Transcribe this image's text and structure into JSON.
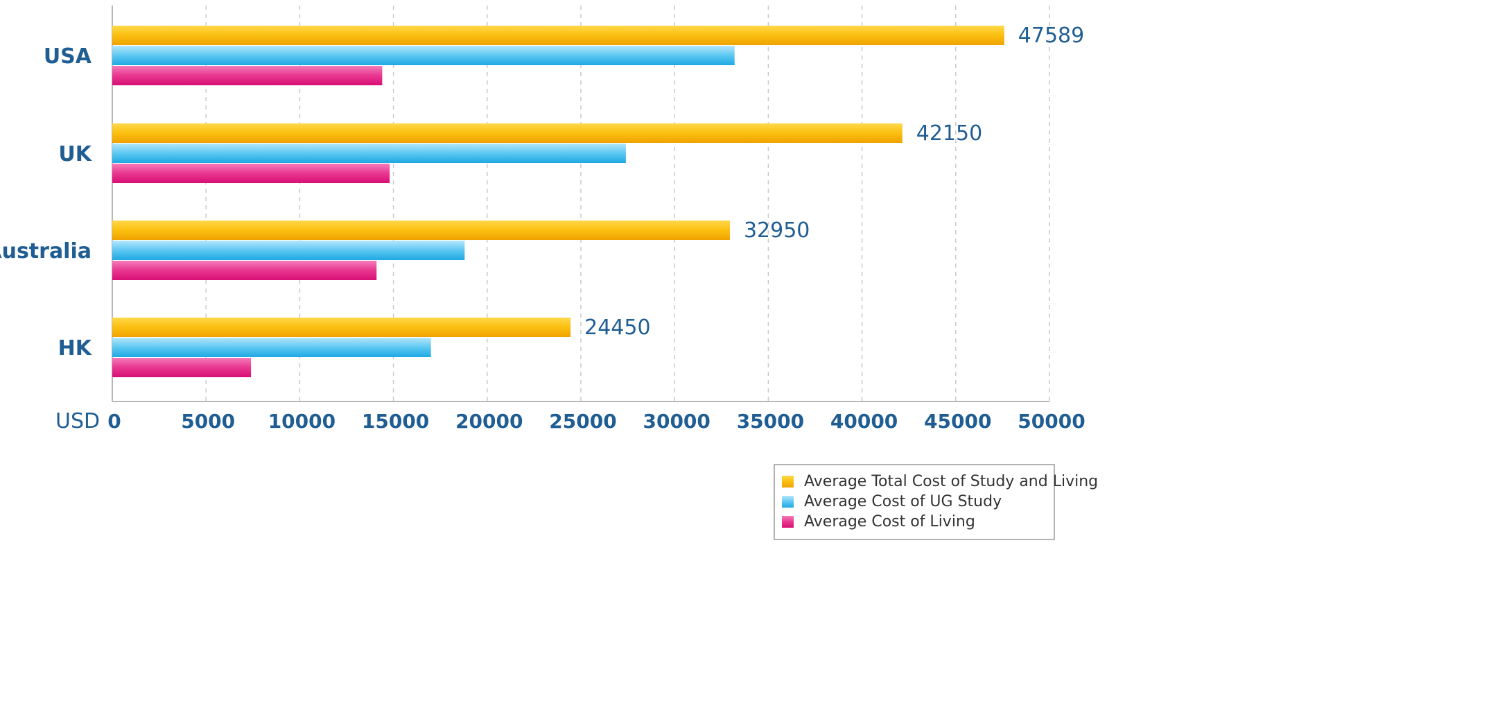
{
  "chart_data": {
    "type": "bar",
    "orientation": "horizontal",
    "title": "",
    "xlabel": "USD",
    "ylabel": "",
    "xlim": [
      0,
      50000
    ],
    "x_ticks": [
      "0",
      "5000",
      "10000",
      "15000",
      "20000",
      "25000",
      "30000",
      "35000",
      "40000",
      "45000",
      "50000"
    ],
    "grid": "vertical dashed",
    "legend_position": "bottom-right",
    "categories": [
      "USA",
      "UK",
      "Australia",
      "HK"
    ],
    "series": [
      {
        "name": "Average Total Cost of Study and Living",
        "color": "#f5b800",
        "values": [
          47589,
          42150,
          32950,
          24450
        ],
        "labels": [
          "47589",
          "42150",
          "32950",
          "24450"
        ]
      },
      {
        "name": "Average Cost of UG Study",
        "color": "#38b6ea",
        "values": [
          33200,
          27400,
          18800,
          17000
        ]
      },
      {
        "name": "Average Cost of Living",
        "color": "#e2187f",
        "values": [
          14400,
          14800,
          14100,
          7400
        ]
      }
    ]
  }
}
